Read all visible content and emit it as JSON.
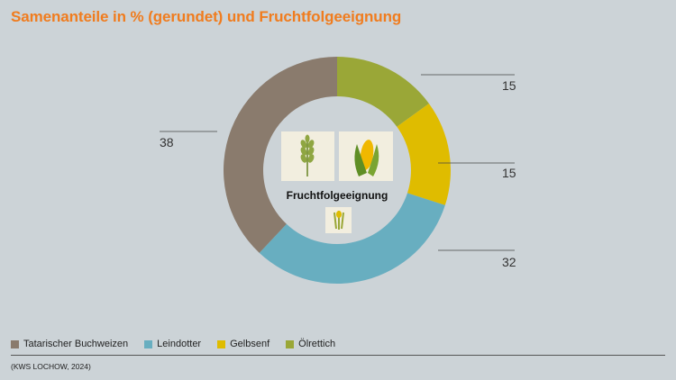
{
  "title": "Samenanteile in % (gerundet) und Fruchtfolgeeignung",
  "center_label": "Fruchtfolgeeignung",
  "source": "(KWS LOCHOW, 2024)",
  "chart_data": {
    "type": "pie",
    "title": "Samenanteile in % (gerundet) und Fruchtfolgeeignung",
    "series": [
      {
        "name": "Ölrettich",
        "value": 15,
        "color": "#9aa737"
      },
      {
        "name": "Gelbsenf",
        "value": 15,
        "color": "#dfbc00"
      },
      {
        "name": "Leindotter",
        "value": 32,
        "color": "#68aec0"
      },
      {
        "name": "Tatarischer Buchweizen",
        "value": 38,
        "color": "#8a7b6d"
      }
    ],
    "legend_order": [
      "Tatarischer Buchweizen",
      "Leindotter",
      "Gelbsenf",
      "Ölrettich"
    ],
    "legend_position": "bottom-left"
  },
  "icons": [
    "wheat-icon",
    "corn-icon",
    "rapeseed-icon"
  ]
}
